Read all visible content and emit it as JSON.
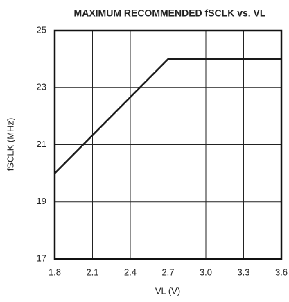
{
  "chart_data": {
    "type": "line",
    "title": "MAXIMUM RECOMMENDED fSCLK vs. VL",
    "x_label": "VL (V)",
    "y_label": "fSCLK (MHz)",
    "x": [
      1.8,
      2.7,
      3.6
    ],
    "series": [
      {
        "name": null,
        "color": "#1a1a1a",
        "values": [
          20,
          24,
          24
        ]
      }
    ],
    "xlim": [
      1.8,
      3.6
    ],
    "xticks": [
      1.8,
      2.1,
      2.4,
      2.7,
      {
        "value": 3,
        "label": "3.0"
      },
      3.3,
      3.6
    ],
    "ylim": [
      17,
      25
    ],
    "yticks": [
      17,
      19,
      21,
      23,
      25
    ],
    "grid": true
  }
}
